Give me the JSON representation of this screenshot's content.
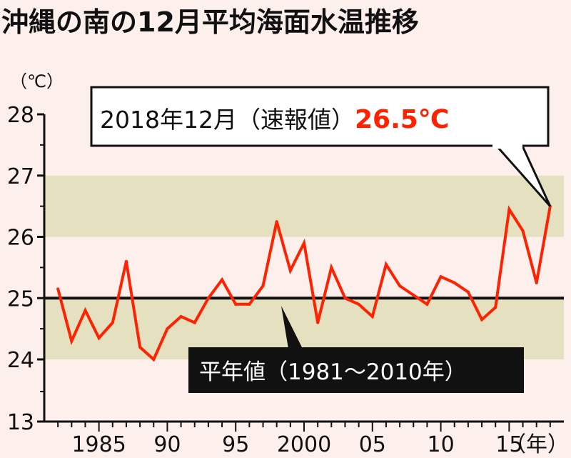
{
  "title": "沖縄の南の12月平均海面水温推移",
  "colors": {
    "background": "#fdf0ec",
    "band": "#e4e0c0",
    "line": "#ff2200",
    "axis": "#111111",
    "value_text": "#ff2200"
  },
  "annotation": {
    "label": "2018年12月（速報値）",
    "value": "26.5℃"
  },
  "normal_label": "平年値（1981～2010年）",
  "chart_data": {
    "type": "line",
    "title": "沖縄の南の12月平均海面水温推移",
    "ylabel": "（℃）",
    "xlabel": "（年）",
    "y_tick_labels": [
      "13",
      "24",
      "25",
      "26",
      "27",
      "28"
    ],
    "y_axis_break": "13から24の間は省略",
    "ylim": [
      24,
      28
    ],
    "x_tick_labels": [
      "1985",
      "90",
      "95",
      "2000",
      "05",
      "10",
      "15",
      "（年）"
    ],
    "x_ticks": [
      1985,
      1990,
      1995,
      2000,
      2005,
      2010,
      2015
    ],
    "xlim": [
      1981,
      2019
    ],
    "normal_value": 25.0,
    "normal_band": [
      24.0,
      27.0
    ],
    "grid": false,
    "series": [
      {
        "x": [
          1982,
          1983,
          1984,
          1985,
          1986,
          1987,
          1988,
          1989,
          1990,
          1991,
          1992,
          1993,
          1994,
          1995,
          1996,
          1997,
          1998,
          1999,
          2000,
          2001,
          2002,
          2003,
          2004,
          2005,
          2006,
          2007,
          2008,
          2009,
          2010,
          2011,
          2012,
          2013,
          2014,
          2015,
          2016,
          2017,
          2018
        ],
        "values": [
          25.15,
          24.3,
          24.8,
          24.35,
          24.6,
          25.6,
          24.2,
          24.0,
          24.5,
          24.7,
          24.6,
          25.0,
          25.3,
          24.9,
          24.9,
          25.2,
          26.25,
          25.45,
          25.9,
          24.6,
          25.5,
          25.0,
          24.9,
          24.7,
          25.55,
          25.2,
          25.05,
          24.9,
          25.35,
          25.25,
          25.1,
          24.65,
          24.85,
          26.45,
          26.1,
          25.25,
          26.5
        ]
      }
    ]
  }
}
